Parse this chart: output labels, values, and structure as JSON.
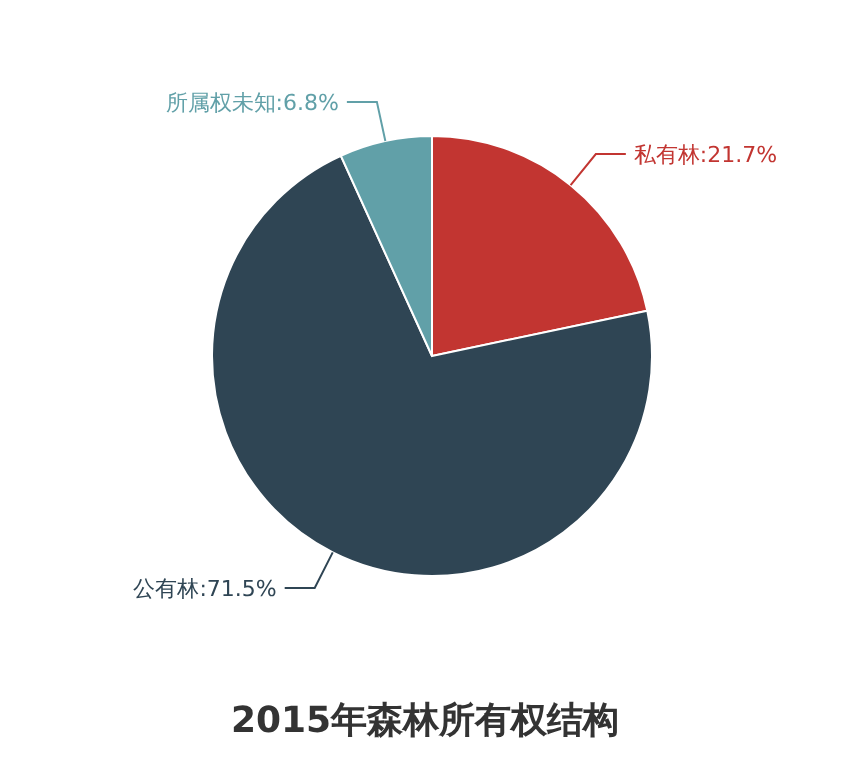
{
  "chart_data": {
    "type": "pie",
    "title": "2015年森林所有权结构",
    "categories": [
      "私有林",
      "公有林",
      "所属权未知"
    ],
    "values": [
      21.7,
      71.5,
      6.8
    ],
    "colors": [
      "#c23531",
      "#2f4554",
      "#61a0a8"
    ],
    "value_labels": [
      ":21.7%",
      ":71.5%",
      ":6.8%"
    ],
    "legend": false
  }
}
